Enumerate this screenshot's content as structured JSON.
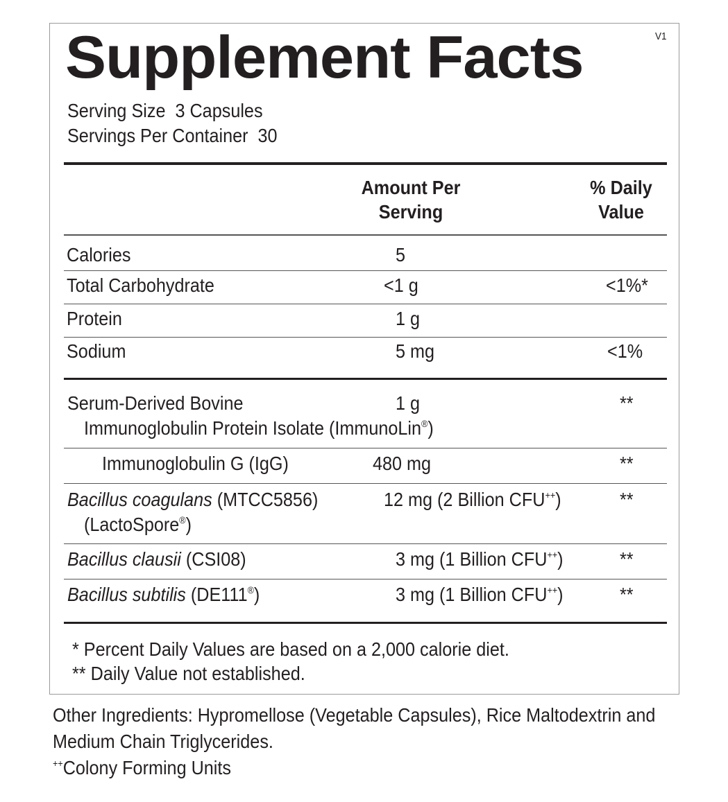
{
  "title": "Supplement Facts",
  "version": "V1",
  "serving_size": "Serving Size  3 Capsules",
  "servings_per_container": "Servings Per Container  30",
  "headers": {
    "amount_1": "Amount Per",
    "amount_2": "Serving",
    "dv_1": "% Daily",
    "dv_2": "Value"
  },
  "rows": [
    {
      "name": "Calories",
      "amount": "5",
      "dv": ""
    },
    {
      "name": "Total Carbohydrate",
      "amount": "<1 g",
      "dv": "<1%*"
    },
    {
      "name": "Protein",
      "amount": "1 g",
      "dv": ""
    },
    {
      "name": "Sodium",
      "amount": "5 mg",
      "dv": "<1%"
    },
    {
      "name": "Serum-Derived Bovine",
      "name_2": "Immunoglobulin Protein Isolate (ImmunoLin",
      "reg": "®",
      "name_2_end": ")",
      "amount": "1 g",
      "dv": "**"
    },
    {
      "name": "Immunoglobulin G (IgG)",
      "amount": "480 mg",
      "dv": "**"
    },
    {
      "name_italic": "Bacillus coagulans",
      "name": " (MTCC5856)",
      "name_2": "(LactoSpore",
      "reg": "®",
      "name_2_end": ")",
      "amount": "12 mg (2 Billion CFU",
      "amount_sup": "++",
      "amount_end": ")",
      "dv": "**"
    },
    {
      "name_italic": "Bacillus clausii",
      "name": " (CSI08)",
      "amount": "3 mg (1 Billion CFU",
      "amount_sup": "++",
      "amount_end": ")",
      "dv": "**"
    },
    {
      "name_italic": "Bacillus subtilis",
      "name": " (DE111",
      "reg": "®",
      "name_end": ")",
      "amount": "3 mg (1 Billion CFU",
      "amount_sup": "++",
      "amount_end": ")",
      "dv": "**"
    }
  ],
  "footnotes": [
    "* Percent Daily Values are based on a 2,000 calorie diet.",
    "** Daily Value not established."
  ],
  "other_ingredients": [
    "Other Ingredients: Hypromellose (Vegetable Capsules), Rice Maltodextrin and",
    "Medium Chain Triglycerides."
  ],
  "cfu_note": {
    "sup": "++",
    "text": "Colony Forming Units"
  }
}
